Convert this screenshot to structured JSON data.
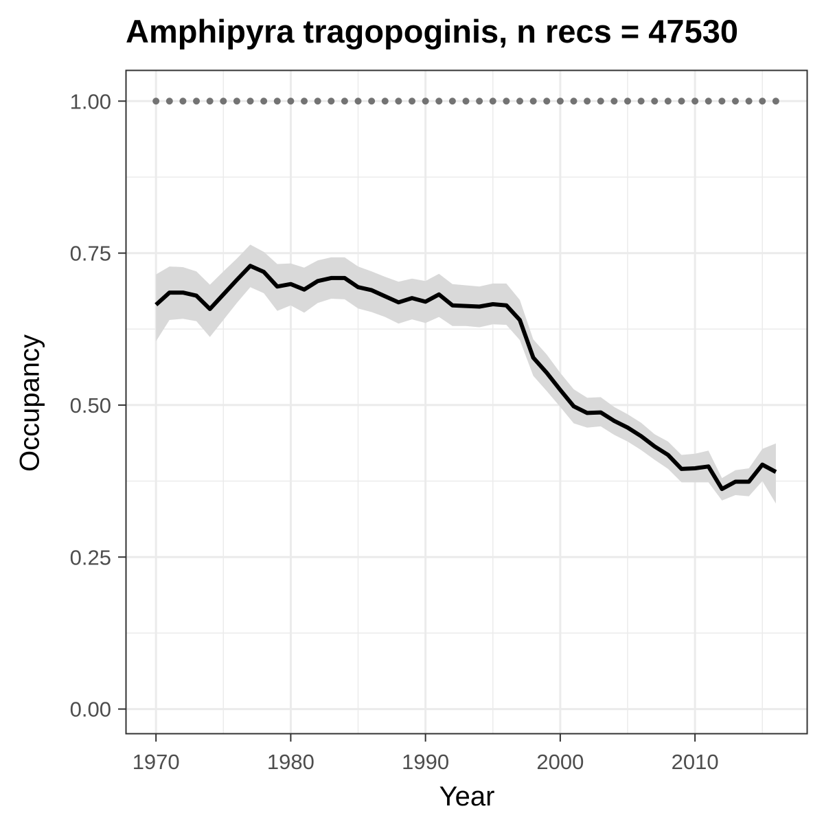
{
  "chart_data": {
    "type": "line",
    "title": "Amphipyra tragopoginis, n recs = 47530",
    "xlabel": "Year",
    "ylabel": "Occupancy",
    "xlim": [
      1967.8,
      2018.3
    ],
    "ylim": [
      -0.04,
      1.05
    ],
    "x_ticks": [
      1970,
      1980,
      1990,
      2000,
      2010
    ],
    "x_tick_labels": [
      "1970",
      "1980",
      "1990",
      "2000",
      "2010"
    ],
    "y_ticks": [
      0.0,
      0.25,
      0.5,
      0.75,
      1.0
    ],
    "y_tick_labels": [
      "0.00",
      "0.25",
      "0.50",
      "0.75",
      "1.00"
    ],
    "grid": true,
    "colors": {
      "line": "#000000",
      "ribbon": "#d9d9d9",
      "reference": "#737373",
      "grid": "#ebebeb",
      "panel_border": "#333333"
    },
    "series": [
      {
        "x": [
          1970,
          1971,
          1972,
          1973,
          1974,
          1975,
          1976,
          1977,
          1978,
          1979,
          1980,
          1981,
          1982,
          1983,
          1984,
          1985,
          1986,
          1987,
          1988,
          1989,
          1990,
          1991,
          1992,
          1993,
          1994,
          1995,
          1996,
          1997,
          1998,
          1999,
          2000,
          2001,
          2002,
          2003,
          2004,
          2005,
          2006,
          2007,
          2008,
          2009,
          2010,
          2011,
          2012,
          2013,
          2014,
          2015,
          2016
        ],
        "values": [
          0.665,
          0.685,
          0.685,
          0.68,
          0.658,
          0.682,
          0.706,
          0.729,
          0.719,
          0.695,
          0.699,
          0.69,
          0.704,
          0.709,
          0.709,
          0.694,
          0.689,
          0.679,
          0.669,
          0.676,
          0.67,
          0.682,
          0.664,
          0.663,
          0.662,
          0.666,
          0.664,
          0.64,
          0.578,
          0.553,
          0.525,
          0.498,
          0.487,
          0.488,
          0.474,
          0.463,
          0.449,
          0.432,
          0.418,
          0.395,
          0.396,
          0.399,
          0.362,
          0.374,
          0.374,
          0.402,
          0.39
        ],
        "lower": [
          0.605,
          0.64,
          0.642,
          0.638,
          0.612,
          0.64,
          0.668,
          0.694,
          0.684,
          0.655,
          0.664,
          0.652,
          0.668,
          0.675,
          0.674,
          0.659,
          0.653,
          0.645,
          0.634,
          0.641,
          0.635,
          0.645,
          0.63,
          0.63,
          0.628,
          0.633,
          0.632,
          0.607,
          0.548,
          0.523,
          0.497,
          0.47,
          0.463,
          0.465,
          0.451,
          0.44,
          0.426,
          0.41,
          0.395,
          0.373,
          0.373,
          0.373,
          0.343,
          0.352,
          0.35,
          0.375,
          0.338
        ],
        "upper": [
          0.715,
          0.728,
          0.727,
          0.72,
          0.698,
          0.72,
          0.741,
          0.764,
          0.752,
          0.732,
          0.733,
          0.726,
          0.738,
          0.743,
          0.743,
          0.728,
          0.72,
          0.711,
          0.703,
          0.708,
          0.704,
          0.716,
          0.699,
          0.697,
          0.695,
          0.7,
          0.7,
          0.673,
          0.608,
          0.583,
          0.553,
          0.526,
          0.512,
          0.513,
          0.497,
          0.485,
          0.471,
          0.452,
          0.44,
          0.418,
          0.42,
          0.425,
          0.38,
          0.393,
          0.396,
          0.428,
          0.437
        ]
      }
    ],
    "reference": {
      "x": [
        1970,
        1971,
        1972,
        1973,
        1974,
        1975,
        1976,
        1977,
        1978,
        1979,
        1980,
        1981,
        1982,
        1983,
        1984,
        1985,
        1986,
        1987,
        1988,
        1989,
        1990,
        1991,
        1992,
        1993,
        1994,
        1995,
        1996,
        1997,
        1998,
        1999,
        2000,
        2001,
        2002,
        2003,
        2004,
        2005,
        2006,
        2007,
        2008,
        2009,
        2010,
        2011,
        2012,
        2013,
        2014,
        2015,
        2016
      ],
      "value": 1.0
    }
  }
}
